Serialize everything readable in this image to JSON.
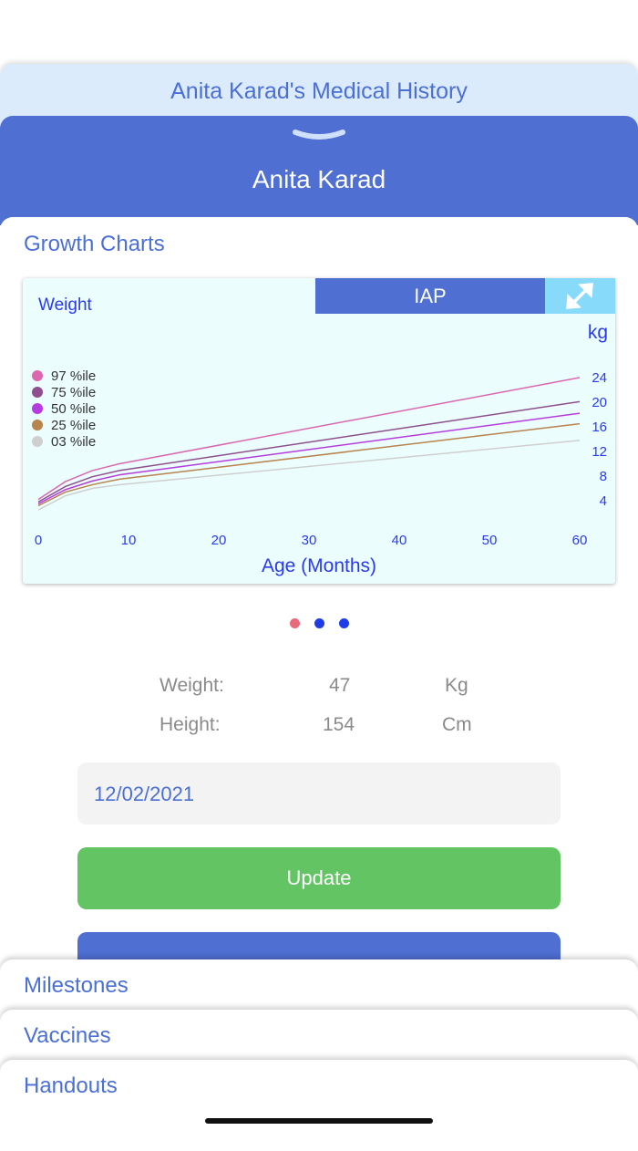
{
  "history_title": "Anita Karad's Medical History",
  "patient_name": "Anita Karad",
  "section_title": "Growth Charts",
  "chart_toggle": "IAP",
  "colors": {
    "primary": "#4f6fd2",
    "update": "#62c462",
    "dot_active": "#e86a7a",
    "dot": "#1e3de8"
  },
  "chart_data": {
    "type": "line",
    "title": "Weight",
    "xlabel": "Age (Months)",
    "ylabel": "kg",
    "xlim": [
      0,
      60
    ],
    "ylim": [
      0,
      26
    ],
    "xticks": [
      "0",
      "10",
      "20",
      "30",
      "40",
      "50",
      "60"
    ],
    "yticks": [
      "4",
      "8",
      "12",
      "16",
      "20",
      "24"
    ],
    "x": [
      0,
      3,
      6,
      9,
      60
    ],
    "series": [
      {
        "name": "97 %ile",
        "color": "#db67b0",
        "values": [
          4.2,
          7.1,
          8.9,
          10.0,
          24.0
        ]
      },
      {
        "name": "75 %ile",
        "color": "#8f4f8f",
        "values": [
          3.8,
          6.3,
          7.9,
          8.9,
          20.1
        ]
      },
      {
        "name": "50 %ile",
        "color": "#b53de0",
        "values": [
          3.5,
          5.8,
          7.2,
          8.2,
          18.2
        ]
      },
      {
        "name": "25 %ile",
        "color": "#b8834c",
        "values": [
          3.2,
          5.4,
          6.6,
          7.5,
          16.5
        ]
      },
      {
        "name": "03 %ile",
        "color": "#cfcfcf",
        "values": [
          2.5,
          4.8,
          6.0,
          6.6,
          13.8
        ]
      }
    ]
  },
  "measurements": [
    {
      "label": "Weight:",
      "value": "47",
      "unit": "Kg"
    },
    {
      "label": "Height:",
      "value": "154",
      "unit": "Cm"
    }
  ],
  "date": "12/02/2021",
  "update_label": "Update",
  "tabs": [
    "Milestones",
    "Vaccines",
    "Handouts"
  ]
}
